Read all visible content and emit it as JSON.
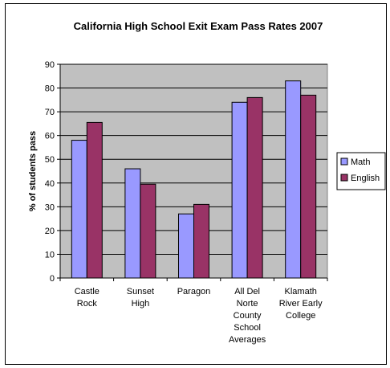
{
  "chart_data": {
    "type": "bar",
    "title": "California High School Exit Exam Pass Rates 2007",
    "ylabel": "% of students pass",
    "xlabel": "",
    "ylim": [
      0,
      90
    ],
    "yticks": [
      "0",
      "10",
      "20",
      "30",
      "40",
      "50",
      "60",
      "70",
      "80",
      "90"
    ],
    "ytick_values": [
      0,
      10,
      20,
      30,
      40,
      50,
      60,
      70,
      80,
      90
    ],
    "categories": [
      [
        "Castle",
        "Rock"
      ],
      [
        "Sunset",
        "High"
      ],
      [
        "Paragon"
      ],
      [
        "All Del",
        "Norte",
        "County",
        "School",
        "Averages"
      ],
      [
        "Klamath",
        "River Early",
        "College"
      ]
    ],
    "series": [
      {
        "name": "Math",
        "color": "#9999ff",
        "values": [
          58,
          46,
          27,
          74,
          83
        ]
      },
      {
        "name": "English",
        "color": "#993366",
        "values": [
          65.5,
          39.5,
          31,
          76,
          77
        ]
      }
    ],
    "grid": true,
    "plot_background": "#c0c0c0",
    "legend_position": "right"
  }
}
